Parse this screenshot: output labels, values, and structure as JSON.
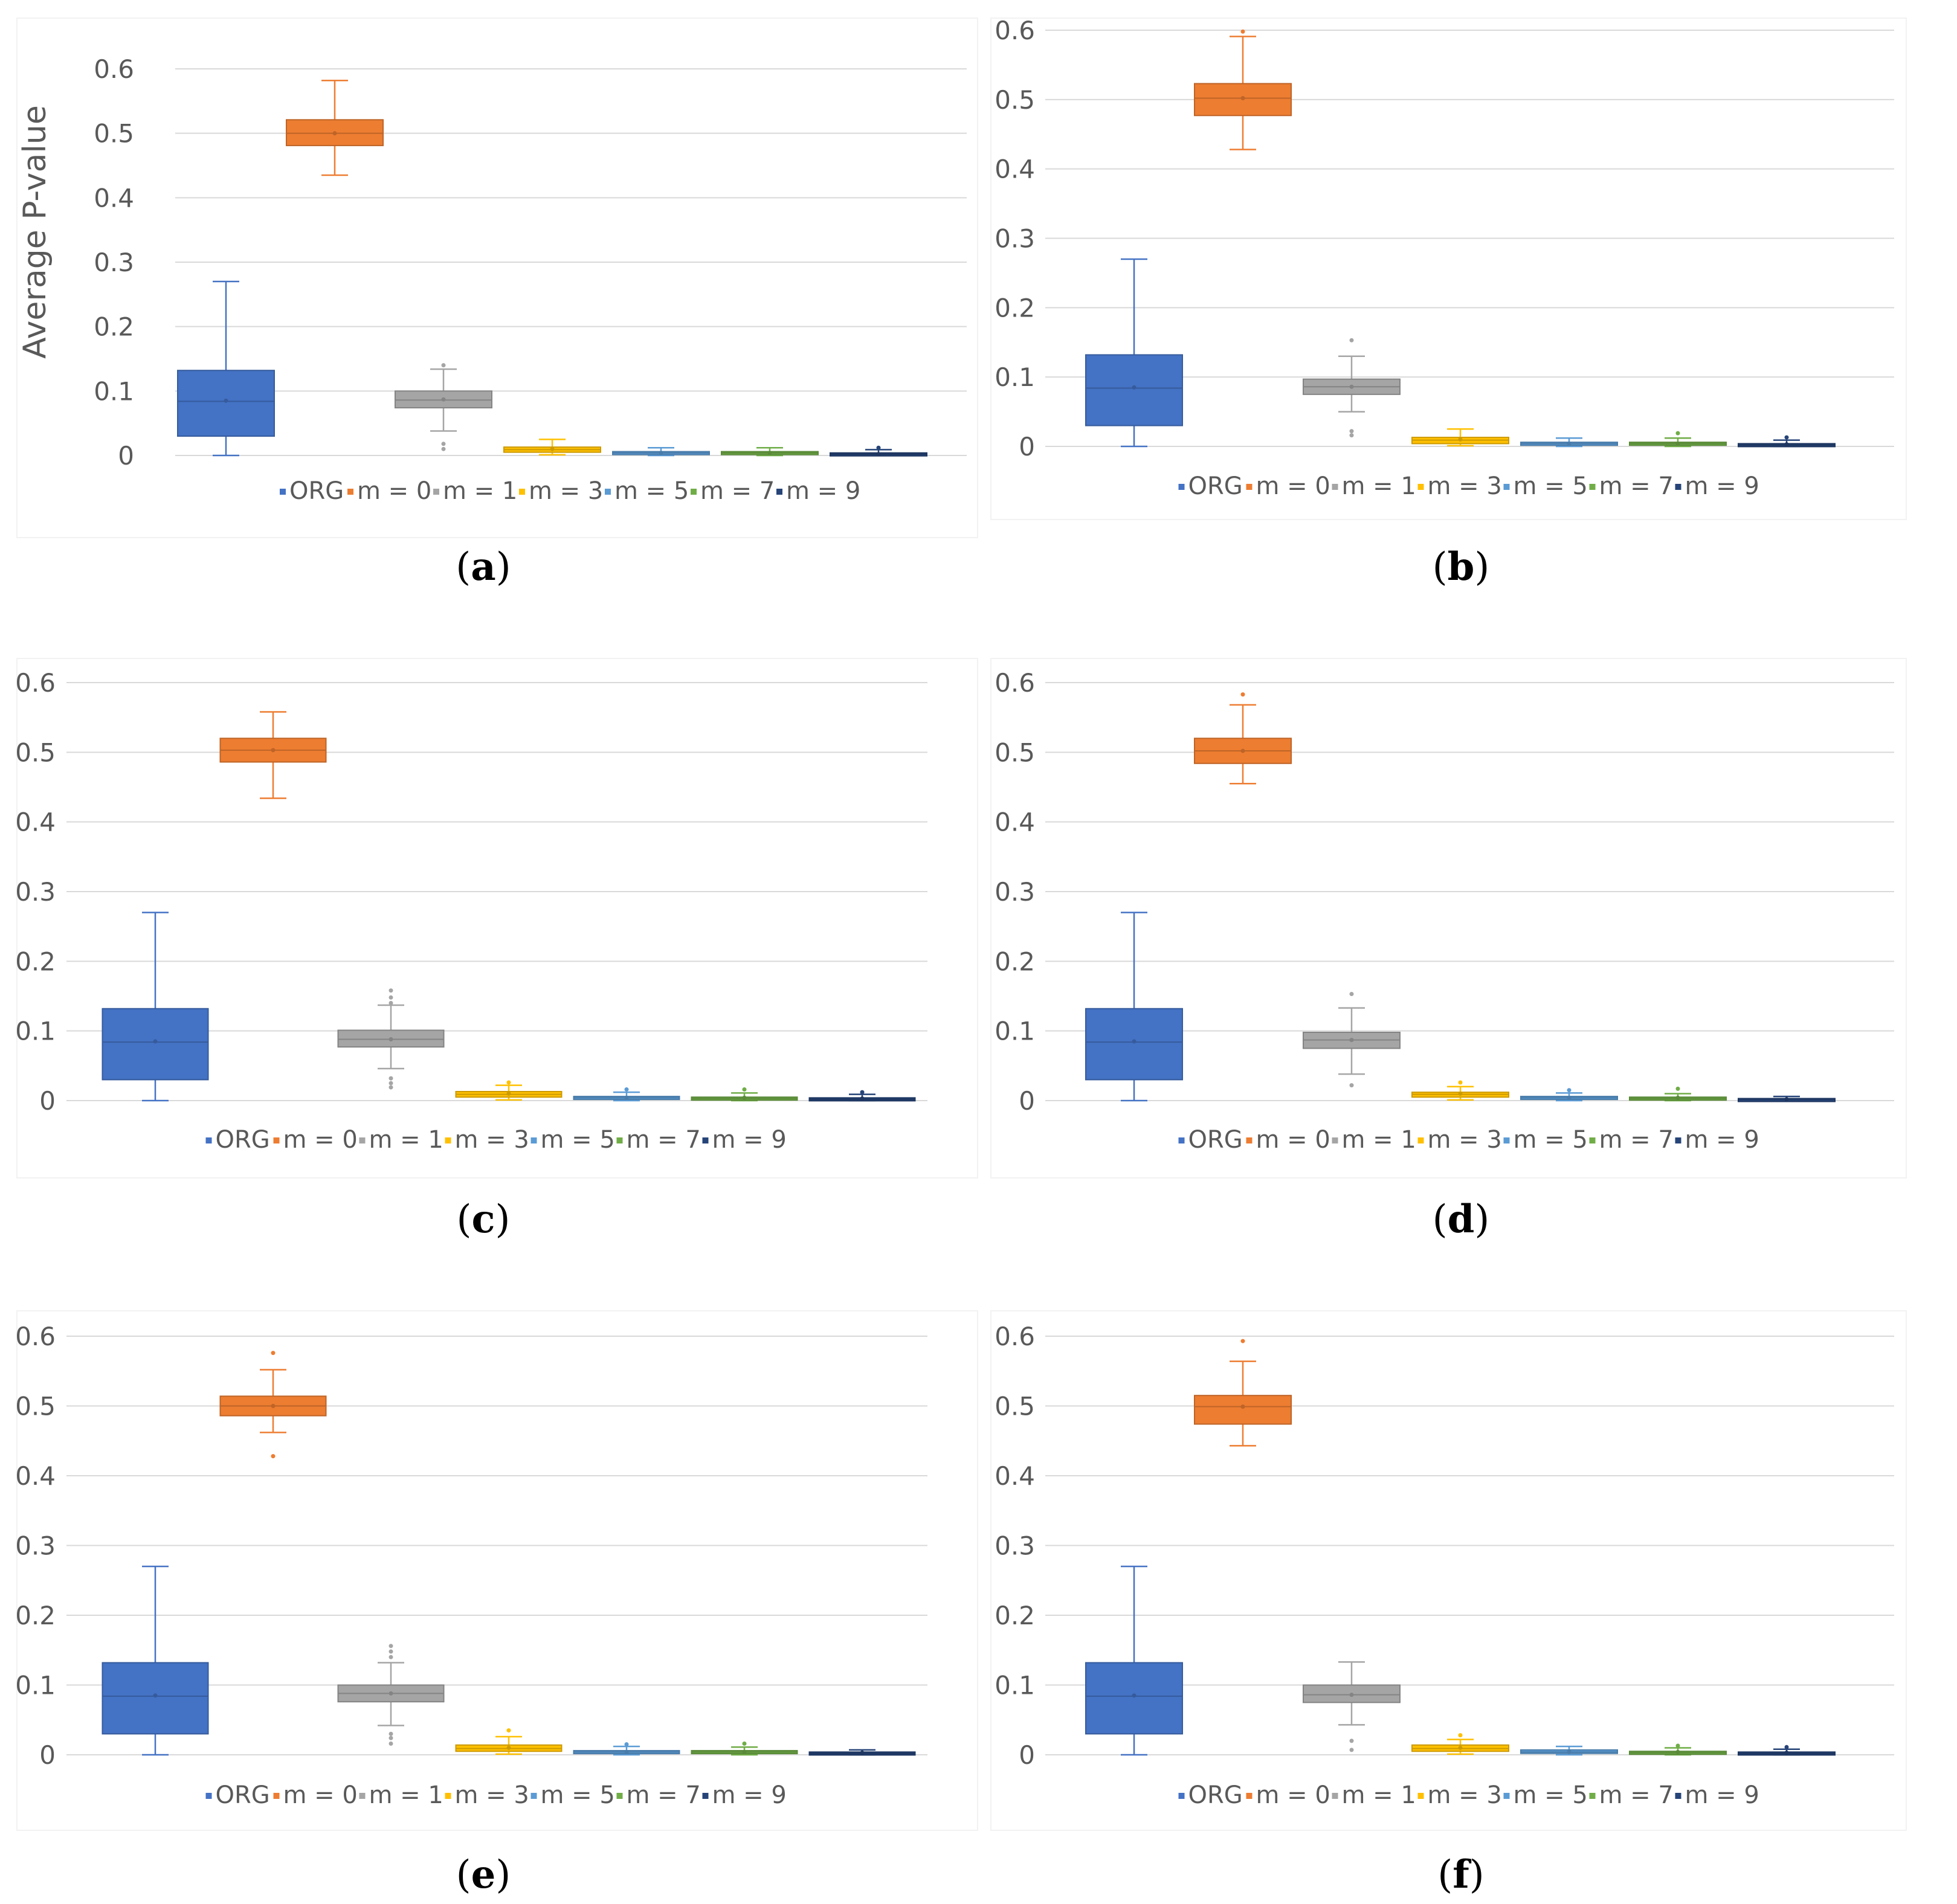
{
  "colors": {
    "ORG": "#4472C4",
    "m = 0": "#ED7D31",
    "m = 1": "#A5A5A5",
    "m = 3": "#FFC000",
    "m = 5": "#5B9BD5",
    "m = 7": "#70AD47",
    "m = 9": "#264478",
    "grid": "#D9D9D9",
    "text": "#595959"
  },
  "chart_data": [
    {
      "type": "box",
      "caption_letter": "a",
      "ylabel": "Average P-value",
      "yticks": [
        "0",
        "0.1",
        "0.2",
        "0.3",
        "0.4",
        "0.5",
        "0.6"
      ],
      "ylim": [
        0,
        0.6
      ],
      "legend": [
        "ORG",
        "m = 0",
        "m = 1",
        "m = 3",
        "m = 5",
        "m = 7",
        "m = 9"
      ],
      "series": [
        {
          "name": "ORG",
          "min": 0.0,
          "q1": 0.03,
          "median": 0.084,
          "mean": 0.085,
          "q3": 0.132,
          "max": 0.27,
          "outliers": []
        },
        {
          "name": "m = 0",
          "min": 0.435,
          "q1": 0.481,
          "median": 0.5,
          "mean": 0.5,
          "q3": 0.521,
          "max": 0.582,
          "outliers": []
        },
        {
          "name": "m = 1",
          "min": 0.038,
          "q1": 0.074,
          "median": 0.086,
          "mean": 0.087,
          "q3": 0.1,
          "max": 0.134,
          "outliers": [
            0.14,
            0.018,
            0.01
          ]
        },
        {
          "name": "m = 3",
          "min": 0.001,
          "q1": 0.005,
          "median": 0.009,
          "mean": 0.01,
          "q3": 0.013,
          "max": 0.025,
          "outliers": []
        },
        {
          "name": "m = 5",
          "min": 0.0,
          "q1": 0.002,
          "median": 0.004,
          "mean": 0.004,
          "q3": 0.006,
          "max": 0.012,
          "outliers": []
        },
        {
          "name": "m = 7",
          "min": 0.0,
          "q1": 0.002,
          "median": 0.004,
          "mean": 0.004,
          "q3": 0.006,
          "max": 0.012,
          "outliers": []
        },
        {
          "name": "m = 9",
          "min": 0.0,
          "q1": 0.001,
          "median": 0.002,
          "mean": 0.002,
          "q3": 0.004,
          "max": 0.009,
          "outliers": [
            0.012
          ]
        }
      ]
    },
    {
      "type": "box",
      "caption_letter": "b",
      "ylabel": "",
      "yticks": [
        "0",
        "0.1",
        "0.2",
        "0.3",
        "0.4",
        "0.5",
        "0.6"
      ],
      "ylim": [
        0,
        0.6
      ],
      "legend": [
        "ORG",
        "m = 0",
        "m = 1",
        "m = 3",
        "m = 5",
        "m = 7",
        "m = 9"
      ],
      "series": [
        {
          "name": "ORG",
          "min": 0.0,
          "q1": 0.03,
          "median": 0.084,
          "mean": 0.085,
          "q3": 0.132,
          "max": 0.27,
          "outliers": []
        },
        {
          "name": "m = 0",
          "min": 0.428,
          "q1": 0.477,
          "median": 0.502,
          "mean": 0.502,
          "q3": 0.523,
          "max": 0.591,
          "outliers": [
            0.598
          ]
        },
        {
          "name": "m = 1",
          "min": 0.05,
          "q1": 0.075,
          "median": 0.086,
          "mean": 0.086,
          "q3": 0.097,
          "max": 0.13,
          "outliers": [
            0.153,
            0.022,
            0.016
          ]
        },
        {
          "name": "m = 3",
          "min": 0.001,
          "q1": 0.004,
          "median": 0.009,
          "mean": 0.01,
          "q3": 0.013,
          "max": 0.025,
          "outliers": []
        },
        {
          "name": "m = 5",
          "min": 0.0,
          "q1": 0.002,
          "median": 0.004,
          "mean": 0.004,
          "q3": 0.006,
          "max": 0.012,
          "outliers": []
        },
        {
          "name": "m = 7",
          "min": 0.0,
          "q1": 0.002,
          "median": 0.004,
          "mean": 0.004,
          "q3": 0.006,
          "max": 0.012,
          "outliers": [
            0.019
          ]
        },
        {
          "name": "m = 9",
          "min": 0.0,
          "q1": 0.001,
          "median": 0.002,
          "mean": 0.003,
          "q3": 0.004,
          "max": 0.009,
          "outliers": [
            0.013
          ]
        }
      ]
    },
    {
      "type": "box",
      "caption_letter": "c",
      "ylabel": "",
      "yticks": [
        "0",
        "0.1",
        "0.2",
        "0.3",
        "0.4",
        "0.5",
        "0.6"
      ],
      "ylim": [
        0,
        0.6
      ],
      "legend": [
        "ORG",
        "m = 0",
        "m = 1",
        "m = 3",
        "m = 5",
        "m = 7",
        "m = 9"
      ],
      "series": [
        {
          "name": "ORG",
          "min": 0.0,
          "q1": 0.03,
          "median": 0.084,
          "mean": 0.085,
          "q3": 0.132,
          "max": 0.27,
          "outliers": []
        },
        {
          "name": "m = 0",
          "min": 0.434,
          "q1": 0.486,
          "median": 0.503,
          "mean": 0.503,
          "q3": 0.52,
          "max": 0.558,
          "outliers": []
        },
        {
          "name": "m = 1",
          "min": 0.046,
          "q1": 0.077,
          "median": 0.088,
          "mean": 0.088,
          "q3": 0.101,
          "max": 0.137,
          "outliers": [
            0.158,
            0.148,
            0.14,
            0.032,
            0.025,
            0.019
          ]
        },
        {
          "name": "m = 3",
          "min": 0.001,
          "q1": 0.005,
          "median": 0.009,
          "mean": 0.01,
          "q3": 0.013,
          "max": 0.022,
          "outliers": [
            0.026
          ]
        },
        {
          "name": "m = 5",
          "min": 0.0,
          "q1": 0.002,
          "median": 0.004,
          "mean": 0.004,
          "q3": 0.006,
          "max": 0.012,
          "outliers": [
            0.016
          ]
        },
        {
          "name": "m = 7",
          "min": 0.0,
          "q1": 0.002,
          "median": 0.003,
          "mean": 0.004,
          "q3": 0.005,
          "max": 0.011,
          "outliers": [
            0.016
          ]
        },
        {
          "name": "m = 9",
          "min": 0.0,
          "q1": 0.001,
          "median": 0.002,
          "mean": 0.003,
          "q3": 0.004,
          "max": 0.009,
          "outliers": [
            0.012
          ]
        }
      ]
    },
    {
      "type": "box",
      "caption_letter": "d",
      "ylabel": "",
      "yticks": [
        "0",
        "0.1",
        "0.2",
        "0.3",
        "0.4",
        "0.5",
        "0.6"
      ],
      "ylim": [
        0,
        0.6
      ],
      "legend": [
        "ORG",
        "m = 0",
        "m = 1",
        "m = 3",
        "m = 5",
        "m = 7",
        "m = 9"
      ],
      "series": [
        {
          "name": "ORG",
          "min": 0.0,
          "q1": 0.03,
          "median": 0.084,
          "mean": 0.085,
          "q3": 0.132,
          "max": 0.27,
          "outliers": []
        },
        {
          "name": "m = 0",
          "min": 0.455,
          "q1": 0.484,
          "median": 0.502,
          "mean": 0.502,
          "q3": 0.52,
          "max": 0.568,
          "outliers": [
            0.583
          ]
        },
        {
          "name": "m = 1",
          "min": 0.038,
          "q1": 0.075,
          "median": 0.087,
          "mean": 0.087,
          "q3": 0.098,
          "max": 0.133,
          "outliers": [
            0.153,
            0.022
          ]
        },
        {
          "name": "m = 3",
          "min": 0.001,
          "q1": 0.005,
          "median": 0.009,
          "mean": 0.01,
          "q3": 0.012,
          "max": 0.02,
          "outliers": [
            0.026
          ]
        },
        {
          "name": "m = 5",
          "min": 0.0,
          "q1": 0.002,
          "median": 0.004,
          "mean": 0.004,
          "q3": 0.006,
          "max": 0.011,
          "outliers": [
            0.015
          ]
        },
        {
          "name": "m = 7",
          "min": 0.0,
          "q1": 0.002,
          "median": 0.003,
          "mean": 0.004,
          "q3": 0.005,
          "max": 0.01,
          "outliers": [
            0.017
          ]
        },
        {
          "name": "m = 9",
          "min": 0.0,
          "q1": 0.001,
          "median": 0.002,
          "mean": 0.002,
          "q3": 0.003,
          "max": 0.006,
          "outliers": []
        }
      ]
    },
    {
      "type": "box",
      "caption_letter": "e",
      "ylabel": "",
      "yticks": [
        "0",
        "0.1",
        "0.2",
        "0.3",
        "0.4",
        "0.5",
        "0.6"
      ],
      "ylim": [
        0,
        0.6
      ],
      "legend": [
        "ORG",
        "m = 0",
        "m = 1",
        "m = 3",
        "m = 5",
        "m = 7",
        "m = 9"
      ],
      "series": [
        {
          "name": "ORG",
          "min": 0.0,
          "q1": 0.03,
          "median": 0.084,
          "mean": 0.085,
          "q3": 0.132,
          "max": 0.27,
          "outliers": []
        },
        {
          "name": "m = 0",
          "min": 0.462,
          "q1": 0.486,
          "median": 0.5,
          "mean": 0.5,
          "q3": 0.514,
          "max": 0.552,
          "outliers": [
            0.576,
            0.428
          ]
        },
        {
          "name": "m = 1",
          "min": 0.042,
          "q1": 0.076,
          "median": 0.088,
          "mean": 0.088,
          "q3": 0.1,
          "max": 0.132,
          "outliers": [
            0.156,
            0.148,
            0.14,
            0.03,
            0.024,
            0.016
          ]
        },
        {
          "name": "m = 3",
          "min": 0.001,
          "q1": 0.005,
          "median": 0.009,
          "mean": 0.01,
          "q3": 0.014,
          "max": 0.026,
          "outliers": [
            0.035
          ]
        },
        {
          "name": "m = 5",
          "min": 0.0,
          "q1": 0.002,
          "median": 0.004,
          "mean": 0.004,
          "q3": 0.006,
          "max": 0.012,
          "outliers": [
            0.015
          ]
        },
        {
          "name": "m = 7",
          "min": 0.0,
          "q1": 0.002,
          "median": 0.004,
          "mean": 0.004,
          "q3": 0.006,
          "max": 0.011,
          "outliers": [
            0.016
          ]
        },
        {
          "name": "m = 9",
          "min": 0.0,
          "q1": 0.001,
          "median": 0.002,
          "mean": 0.003,
          "q3": 0.004,
          "max": 0.007,
          "outliers": []
        }
      ]
    },
    {
      "type": "box",
      "caption_letter": "f",
      "ylabel": "",
      "yticks": [
        "0",
        "0.1",
        "0.2",
        "0.3",
        "0.4",
        "0.5",
        "0.6"
      ],
      "ylim": [
        0,
        0.6
      ],
      "legend": [
        "ORG",
        "m = 0",
        "m = 1",
        "m = 3",
        "m = 5",
        "m = 7",
        "m = 9"
      ],
      "series": [
        {
          "name": "ORG",
          "min": 0.0,
          "q1": 0.03,
          "median": 0.084,
          "mean": 0.085,
          "q3": 0.132,
          "max": 0.27,
          "outliers": []
        },
        {
          "name": "m = 0",
          "min": 0.443,
          "q1": 0.474,
          "median": 0.499,
          "mean": 0.499,
          "q3": 0.515,
          "max": 0.564,
          "outliers": [
            0.593
          ]
        },
        {
          "name": "m = 1",
          "min": 0.043,
          "q1": 0.075,
          "median": 0.086,
          "mean": 0.086,
          "q3": 0.1,
          "max": 0.133,
          "outliers": [
            0.02,
            0.007
          ]
        },
        {
          "name": "m = 3",
          "min": 0.001,
          "q1": 0.005,
          "median": 0.009,
          "mean": 0.01,
          "q3": 0.014,
          "max": 0.022,
          "outliers": [
            0.028
          ]
        },
        {
          "name": "m = 5",
          "min": 0.0,
          "q1": 0.002,
          "median": 0.004,
          "mean": 0.004,
          "q3": 0.007,
          "max": 0.012,
          "outliers": []
        },
        {
          "name": "m = 7",
          "min": 0.0,
          "q1": 0.002,
          "median": 0.003,
          "mean": 0.004,
          "q3": 0.005,
          "max": 0.01,
          "outliers": [
            0.013
          ]
        },
        {
          "name": "m = 9",
          "min": 0.0,
          "q1": 0.001,
          "median": 0.002,
          "mean": 0.003,
          "q3": 0.004,
          "max": 0.008,
          "outliers": [
            0.011
          ]
        }
      ]
    }
  ]
}
